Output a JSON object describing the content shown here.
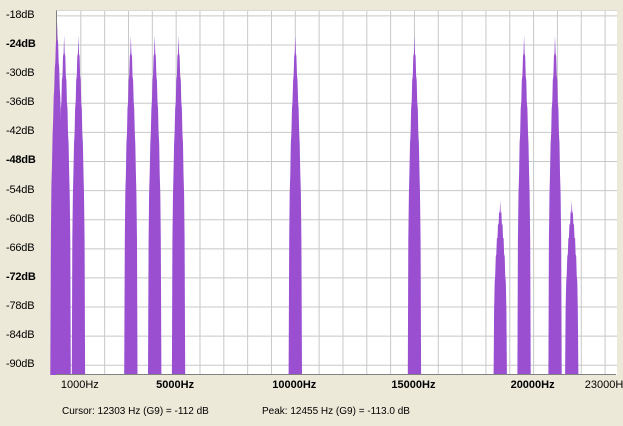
{
  "window": {
    "colors": {
      "background": "#ece9d8",
      "plot_bg": "#ffffff",
      "grid": "#c8c8c8",
      "spectrum": "#9a4fd0"
    }
  },
  "status": {
    "cursor": "Cursor: 12303 Hz (G9) = -112 dB",
    "peak": "Peak: 12455 Hz (G9) = -113.0 dB"
  },
  "chart_data": {
    "type": "area",
    "y_tick_labels": [
      "-18dB",
      "-24dB",
      "-30dB",
      "-36dB",
      "-42dB",
      "-48dB",
      "-54dB",
      "-60dB",
      "-66dB",
      "-72dB",
      "-78dB",
      "-84dB",
      "-90dB"
    ],
    "y_tick_values": [
      -18,
      -24,
      -30,
      -36,
      -42,
      -48,
      -54,
      -60,
      -66,
      -72,
      -78,
      -84,
      -90
    ],
    "y_bold_ticks": [
      "-24dB",
      "-48dB",
      "-72dB"
    ],
    "x_tick_labels": [
      {
        "text": "1000Hz",
        "hz": 1000,
        "bold": false
      },
      {
        "text": "5000Hz",
        "hz": 5000,
        "bold": true
      },
      {
        "text": "10000Hz",
        "hz": 10000,
        "bold": true
      },
      {
        "text": "15000Hz",
        "hz": 15000,
        "bold": true
      },
      {
        "text": "20000Hz",
        "hz": 20000,
        "bold": true
      },
      {
        "text": "23000H",
        "hz": 23000,
        "bold": false
      }
    ],
    "xlim": [
      0,
      23500
    ],
    "ylim": [
      -92,
      -17
    ],
    "peaks": [
      {
        "hz": 0,
        "db": -19
      },
      {
        "hz": 300,
        "db": -22
      },
      {
        "hz": 900,
        "db": -22
      },
      {
        "hz": 3100,
        "db": -22
      },
      {
        "hz": 4100,
        "db": -22
      },
      {
        "hz": 5100,
        "db": -22
      },
      {
        "hz": 10000,
        "db": -22
      },
      {
        "hz": 15000,
        "db": -22
      },
      {
        "hz": 18600,
        "db": -56
      },
      {
        "hz": 19600,
        "db": -22
      },
      {
        "hz": 20900,
        "db": -22
      },
      {
        "hz": 21600,
        "db": -56
      }
    ],
    "grid": true
  }
}
